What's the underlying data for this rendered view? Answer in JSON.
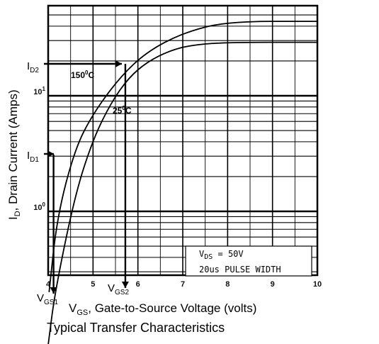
{
  "chart_data": {
    "type": "line",
    "title": "",
    "caption": "Typical Transfer Characteristics",
    "xlabel": "V",
    "xlabel_sub": "GS",
    "xlabel_rest": ", Gate-to-Source Voltage (volts)",
    "ylabel": "I",
    "ylabel_sub": "D",
    "ylabel_rest": ", Drain Current (Amps)",
    "xlim": [
      4,
      10
    ],
    "x_ticks": [
      "4",
      "5",
      "6",
      "7",
      "8",
      "9",
      "10"
    ],
    "y_scale": "log",
    "y_ticks": [
      {
        "value": 1,
        "base": "10",
        "exp": "0"
      },
      {
        "value": 10,
        "base": "10",
        "exp": "1"
      }
    ],
    "grid": true,
    "series": [
      {
        "name": "150°C",
        "label_base": "150",
        "label_sup": "0",
        "label_unit": "C",
        "points": [
          [
            4.02,
            0.2
          ],
          [
            4.2,
            0.9
          ],
          [
            4.6,
            3.5
          ],
          [
            5.0,
            7.0
          ],
          [
            5.6,
            14.5
          ],
          [
            6.2,
            24
          ],
          [
            7.0,
            35
          ],
          [
            8.0,
            44
          ],
          [
            10.0,
            44
          ]
        ]
      },
      {
        "name": "25°C",
        "label_base": "25",
        "label_sup": "0",
        "label_unit": "C",
        "points": [
          [
            4.0,
            0.07
          ],
          [
            4.15,
            0.2
          ],
          [
            4.6,
            1.4
          ],
          [
            5.0,
            4.2
          ],
          [
            5.4,
            8.7
          ],
          [
            5.8,
            14.4
          ],
          [
            6.2,
            19.5
          ],
          [
            6.7,
            24.5
          ],
          [
            7.2,
            27.5
          ],
          [
            8.0,
            29
          ],
          [
            10.0,
            29
          ]
        ]
      }
    ],
    "annotations": {
      "id1": {
        "base": "I",
        "sub": "D1"
      },
      "id2": {
        "base": "I",
        "sub": "D2"
      },
      "vgs1": {
        "base": "V",
        "sub": "GS1"
      },
      "vgs2": {
        "base": "V",
        "sub": "GS2"
      },
      "vds_label": {
        "base": "V",
        "sub": "DS",
        "rest": " = 50V"
      },
      "pulse_label": "20us PULSE WIDTH"
    }
  }
}
